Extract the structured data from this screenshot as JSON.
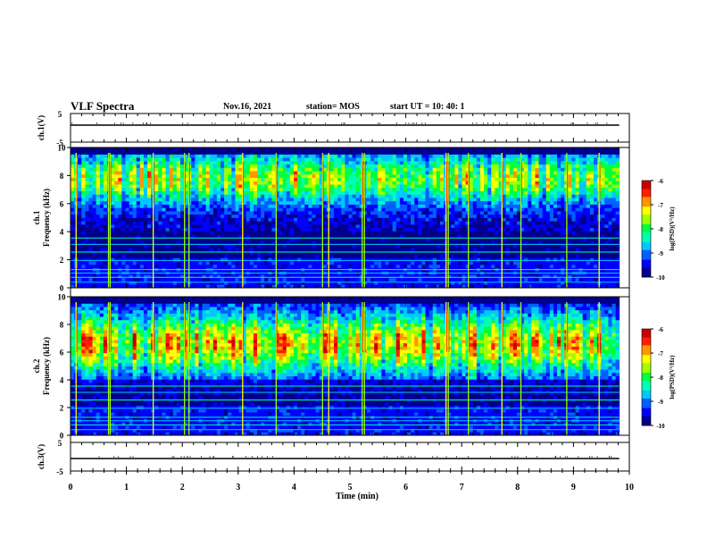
{
  "header": {
    "title": "VLF Spectra",
    "date": "Nov.16, 2021",
    "station": "station= MOS",
    "start_time": "start  UT =   10: 40: 1"
  },
  "chart_data": [
    {
      "type": "line",
      "panel": "ch1-waveform",
      "ylabel": "ch.1(V)",
      "ylim": [
        -5,
        5
      ],
      "y_ticks": [
        "5",
        "-5"
      ],
      "xlim": [
        0,
        10
      ],
      "series": [
        {
          "values": [
            0,
            0
          ]
        }
      ]
    },
    {
      "type": "heatmap",
      "panel": "ch1-spectrogram",
      "ylabel": "ch.1\nFrequency (kHz)",
      "ylim": [
        0,
        10
      ],
      "y_ticks": [
        "0",
        "2",
        "4",
        "6",
        "8",
        "10"
      ],
      "xlim": [
        0,
        9.82
      ],
      "colorbar": {
        "label": "log(PSD)(V²/Hz)",
        "range": [
          -10,
          -6
        ],
        "ticks": [
          "-6",
          "-7",
          "-8",
          "-9",
          "-10"
        ]
      },
      "steady_lines_khz": [
        0.4,
        0.75,
        1.05,
        1.3,
        1.95,
        2.55,
        3.1,
        3.55
      ],
      "bursts_min": [
        0.1,
        0.68,
        0.71,
        1.48,
        2.04,
        2.12,
        3.08,
        3.68,
        4.51,
        4.62,
        5.22,
        5.26,
        6.72,
        6.76,
        7.12,
        7.72,
        8.06,
        8.88,
        9.46
      ]
    },
    {
      "type": "heatmap",
      "panel": "ch2-spectrogram",
      "ylabel": "ch.2\nFrequency (kHz)",
      "ylim": [
        0,
        10
      ],
      "y_ticks": [
        "0",
        "2",
        "4",
        "6",
        "8",
        "10"
      ],
      "xlim": [
        0,
        9.82
      ],
      "colorbar": {
        "label": "log(PSD)(V²/Hz)",
        "range": [
          -10,
          -6
        ],
        "ticks": [
          "-6",
          "-7",
          "-8",
          "-9",
          "-10"
        ]
      },
      "steady_lines_khz": [
        0.4,
        0.75,
        1.05,
        1.3,
        1.95,
        2.55,
        3.1,
        3.55
      ],
      "bursts_min": [
        0.1,
        0.68,
        0.71,
        1.48,
        2.04,
        2.12,
        3.08,
        3.68,
        4.51,
        4.62,
        5.22,
        5.26,
        6.72,
        6.76,
        7.12,
        7.72,
        8.06,
        8.88,
        9.46
      ]
    },
    {
      "type": "line",
      "panel": "ch3-waveform",
      "ylabel": "ch.3(V)",
      "ylim": [
        -5,
        5
      ],
      "y_ticks": [
        "5",
        "-5"
      ],
      "xlim": [
        0,
        10
      ],
      "series": [
        {
          "values": [
            0,
            0
          ]
        }
      ]
    }
  ],
  "x_axis": {
    "label": "Time  (min)",
    "ticks": [
      "0",
      "1",
      "2",
      "3",
      "4",
      "5",
      "6",
      "7",
      "8",
      "9",
      "10"
    ]
  },
  "colors": [
    "#00008c",
    "#0000ff",
    "#0060ff",
    "#00c8ff",
    "#00ffb4",
    "#00ff40",
    "#a0ff00",
    "#ffff00",
    "#ff9600",
    "#ff1e00",
    "#c80000"
  ]
}
